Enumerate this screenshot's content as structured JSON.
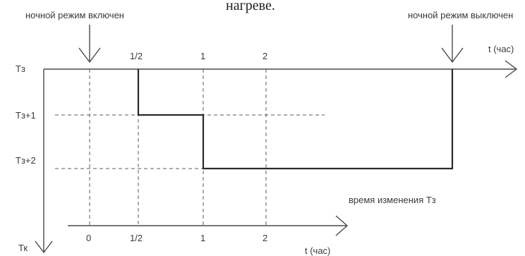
{
  "caption_fragment": "нагреве.",
  "markers": {
    "night_on": "ночной режим включен",
    "night_off": "ночной режим выключен"
  },
  "top_axis": {
    "label": "t (час)",
    "ticks": [
      "1/2",
      "1",
      "2"
    ]
  },
  "bottom_axis": {
    "label": "t (час)",
    "ticks": [
      "0",
      "1/2",
      "1",
      "2"
    ]
  },
  "vertical_axis": {
    "label": "Тк",
    "levels": [
      "Тз",
      "Тз+1",
      "Тз+2"
    ]
  },
  "annotation": "время изменения Тз",
  "colors": {
    "line": "#2a2a2a",
    "grid": "#5a5a5a",
    "text": "#3a3a3a"
  }
}
